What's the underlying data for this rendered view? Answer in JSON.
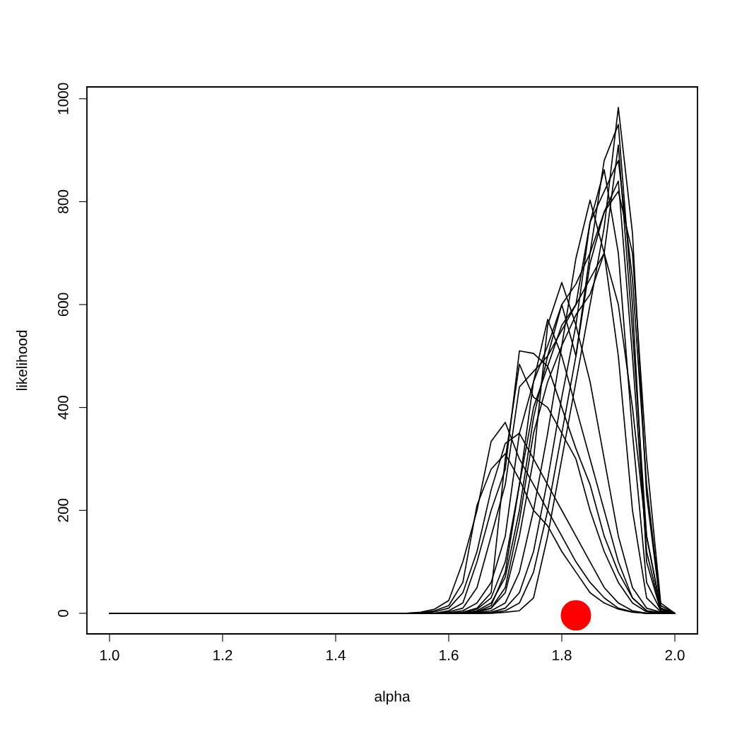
{
  "chart_data": {
    "type": "line",
    "xlabel": "alpha",
    "ylabel": "likelihood",
    "x": [
      1.0,
      1.525,
      1.55,
      1.575,
      1.6,
      1.625,
      1.65,
      1.675,
      1.7,
      1.725,
      1.75,
      1.775,
      1.8,
      1.825,
      1.85,
      1.875,
      1.9,
      1.925,
      1.95,
      1.975,
      2.0
    ],
    "xlim": [
      0.96,
      2.04
    ],
    "xticks": [
      {
        "value": 1.0,
        "label": "1.0"
      },
      1.2,
      1.4,
      1.6,
      1.8,
      {
        "value": 2.0,
        "label": "2.0"
      }
    ],
    "ylim": [
      -40,
      1023
    ],
    "yticks": [
      0,
      200,
      400,
      600,
      800,
      1000
    ],
    "grid": false,
    "marker": "none",
    "line_style": "solid",
    "series": [
      {
        "color": "#000000",
        "values": [
          0,
          0,
          0,
          0,
          0,
          0,
          0,
          0,
          2,
          5,
          30,
          150,
          300,
          450,
          600,
          750,
          983,
          739,
          230,
          10,
          0
        ]
      },
      {
        "color": "#000000",
        "values": [
          0,
          0,
          0,
          0,
          0,
          0,
          0,
          1,
          5,
          20,
          80,
          200,
          350,
          500,
          700,
          880,
          950,
          600,
          100,
          5,
          0
        ]
      },
      {
        "color": "#000000",
        "values": [
          0,
          0,
          0,
          0,
          0,
          0,
          0,
          2,
          10,
          40,
          120,
          260,
          420,
          560,
          760,
          862,
          700,
          350,
          60,
          5,
          0
        ]
      },
      {
        "color": "#000000",
        "values": [
          0,
          0,
          0,
          0,
          0,
          0,
          1,
          5,
          20,
          80,
          200,
          350,
          520,
          690,
          803,
          700,
          500,
          200,
          30,
          3,
          0
        ]
      },
      {
        "color": "#000000",
        "values": [
          0,
          0,
          0,
          0,
          0,
          0,
          2,
          10,
          40,
          150,
          300,
          560,
          643,
          560,
          450,
          300,
          150,
          50,
          10,
          2,
          0
        ]
      },
      {
        "color": "#000000",
        "values": [
          0,
          0,
          0,
          0,
          0,
          1,
          3,
          15,
          80,
          250,
          450,
          571,
          500,
          400,
          300,
          200,
          100,
          30,
          5,
          1,
          0
        ]
      },
      {
        "color": "#000000",
        "values": [
          0,
          0,
          0,
          0,
          0,
          2,
          10,
          40,
          300,
          484,
          420,
          400,
          350,
          300,
          200,
          120,
          60,
          20,
          3,
          0,
          0
        ]
      },
      {
        "color": "#000000",
        "values": [
          0,
          0,
          0,
          0,
          5,
          20,
          100,
          200,
          280,
          510,
          505,
          480,
          400,
          320,
          250,
          150,
          80,
          30,
          5,
          0,
          0
        ]
      },
      {
        "color": "#000000",
        "values": [
          0,
          0,
          2,
          8,
          25,
          100,
          200,
          334,
          371,
          300,
          250,
          200,
          150,
          100,
          60,
          30,
          10,
          3,
          0,
          0,
          0
        ]
      },
      {
        "color": "#000000",
        "values": [
          0,
          0,
          1,
          5,
          15,
          60,
          210,
          280,
          310,
          260,
          200,
          170,
          120,
          80,
          40,
          20,
          8,
          2,
          0,
          0,
          0
        ]
      },
      {
        "color": "#000000",
        "values": [
          0,
          0,
          0,
          3,
          10,
          40,
          120,
          240,
          330,
          350,
          300,
          250,
          200,
          150,
          100,
          50,
          20,
          5,
          0,
          0,
          0
        ]
      },
      {
        "color": "#000000",
        "values": [
          0,
          0,
          0,
          0,
          3,
          10,
          50,
          150,
          250,
          440,
          470,
          500,
          550,
          600,
          650,
          700,
          600,
          400,
          150,
          10,
          0
        ]
      },
      {
        "color": "#000000",
        "values": [
          0,
          0,
          0,
          0,
          1,
          5,
          20,
          60,
          150,
          350,
          450,
          520,
          600,
          640,
          700,
          780,
          820,
          700,
          300,
          20,
          0
        ]
      },
      {
        "color": "#000000",
        "values": [
          0,
          0,
          0,
          0,
          0,
          2,
          8,
          30,
          100,
          250,
          400,
          480,
          560,
          600,
          760,
          820,
          880,
          650,
          250,
          15,
          0
        ]
      },
      {
        "color": "#000000",
        "values": [
          0,
          0,
          0,
          0,
          0,
          0,
          3,
          10,
          50,
          180,
          350,
          450,
          520,
          580,
          620,
          700,
          910,
          550,
          150,
          8,
          0
        ]
      },
      {
        "color": "#000000",
        "values": [
          0,
          0,
          0,
          0,
          0,
          1,
          5,
          20,
          70,
          200,
          380,
          500,
          600,
          500,
          680,
          780,
          840,
          500,
          120,
          5,
          0
        ]
      },
      {
        "type": "scatter",
        "marker": "circle",
        "color": "#ff0000",
        "x": [
          1.825
        ],
        "values": [
          -4
        ]
      }
    ]
  }
}
